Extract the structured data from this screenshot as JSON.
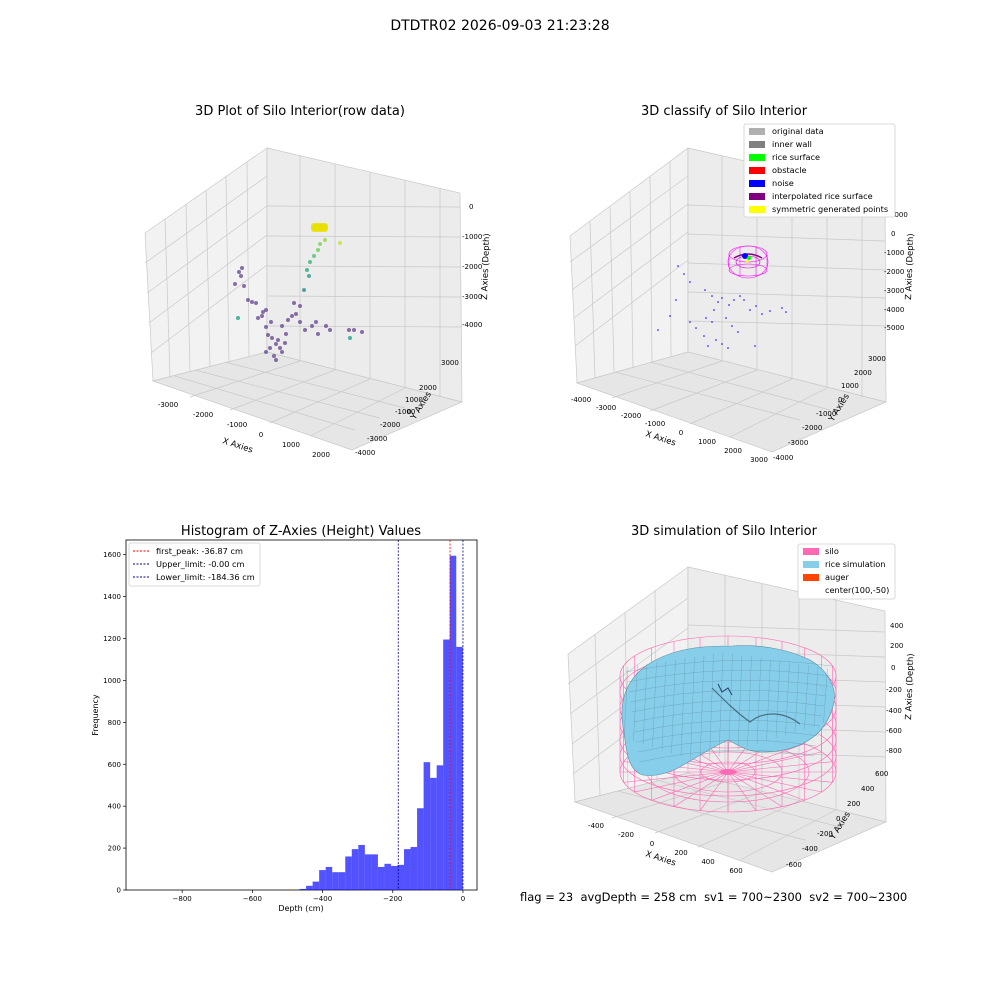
{
  "suptitle": "DTDTR02 2026-09-03 21:23:28",
  "panels": {
    "raw": {
      "title": "3D Plot of Silo Interior(row data)",
      "xlabel": "X Axies",
      "ylabel": "Y Axies",
      "zlabel": "Z Axies (Depth)",
      "xticks": [
        "-3000",
        "-2000",
        "-1000",
        "0",
        "1000",
        "2000"
      ],
      "yticks": [
        "3000",
        "2000",
        "1000",
        "0",
        "-1000",
        "-2000",
        "-3000",
        "-4000"
      ],
      "zticks": [
        "0",
        "-1000",
        "-2000",
        "-3000",
        "-4000"
      ]
    },
    "classify": {
      "title": "3D classify of Silo Interior",
      "xlabel": "X Axies",
      "ylabel": "Y Axies",
      "zlabel": "Z Axies (Depth)",
      "xticks": [
        "-4000",
        "-3000",
        "-2000",
        "-1000",
        "0",
        "1000",
        "2000",
        "3000"
      ],
      "yticks": [
        "3000",
        "2000",
        "1000",
        "0",
        "-1000",
        "-2000",
        "-3000",
        "-4000"
      ],
      "zticks": [
        "1000",
        "0",
        "-1000",
        "-2000",
        "-3000",
        "-4000",
        "-5000"
      ],
      "legend": [
        {
          "label": "original data",
          "color": "#b0b0b0"
        },
        {
          "label": "inner wall",
          "color": "#808080"
        },
        {
          "label": "rice surface",
          "color": "#00ff00"
        },
        {
          "label": "obstacle",
          "color": "#ff0000"
        },
        {
          "label": "noise",
          "color": "#0000ff"
        },
        {
          "label": "interpolated rice surface",
          "color": "#800080"
        },
        {
          "label": "symmetric generated points",
          "color": "#ffff00"
        }
      ]
    },
    "simulation": {
      "title": "3D simulation of Silo Interior",
      "xlabel": "X Axies",
      "ylabel": "Y Axies",
      "zlabel": "Z Axies (Depth)",
      "xticks": [
        "-400",
        "-200",
        "0",
        "200",
        "400",
        "600"
      ],
      "yticks": [
        "600",
        "400",
        "200",
        "0",
        "-200",
        "-400",
        "-600"
      ],
      "zticks": [
        "400",
        "200",
        "0",
        "-200",
        "-400",
        "-600",
        "-800"
      ],
      "legend": [
        {
          "label": "silo",
          "color": "#ff69b4"
        },
        {
          "label": "rice simulation",
          "color": "#87ceeb"
        },
        {
          "label": "auger",
          "color": "#ff4500"
        },
        {
          "label": "center(100,-50)",
          "color": ""
        }
      ]
    }
  },
  "status": {
    "flag": "flag = 23",
    "avg_depth": "avgDepth = 258 cm",
    "sv1": "sv1 = 700~2300",
    "sv2": "sv2 = 700~2300"
  },
  "chart_data": {
    "type": "bar",
    "title": "Histogram of Z-Axies (Height) Values",
    "xlabel": "Depth (cm)",
    "ylabel": "Frequency",
    "xlim": [
      -960,
      40
    ],
    "ylim": [
      0,
      1670
    ],
    "xticks": [
      -800,
      -600,
      -400,
      -200,
      0
    ],
    "yticks": [
      0,
      200,
      400,
      600,
      800,
      1000,
      1200,
      1400,
      1600
    ],
    "bar_color": "#0000ff",
    "bin_width": 18.6,
    "bin_start": -465.5,
    "values": [
      5,
      20,
      40,
      95,
      110,
      85,
      85,
      160,
      195,
      215,
      170,
      170,
      110,
      125,
      115,
      120,
      195,
      205,
      390,
      610,
      535,
      595,
      1195,
      1595,
      1160
    ],
    "lines": [
      {
        "label": "first_peak: -36.87 cm",
        "x": -36.87,
        "color": "#ff0000"
      },
      {
        "label": "Upper_limit: -0.00 cm",
        "x": -0.0,
        "color": "#00008b"
      },
      {
        "label": "Lower_limit: -184.36 cm",
        "x": -184.36,
        "color": "#00008b"
      }
    ]
  }
}
